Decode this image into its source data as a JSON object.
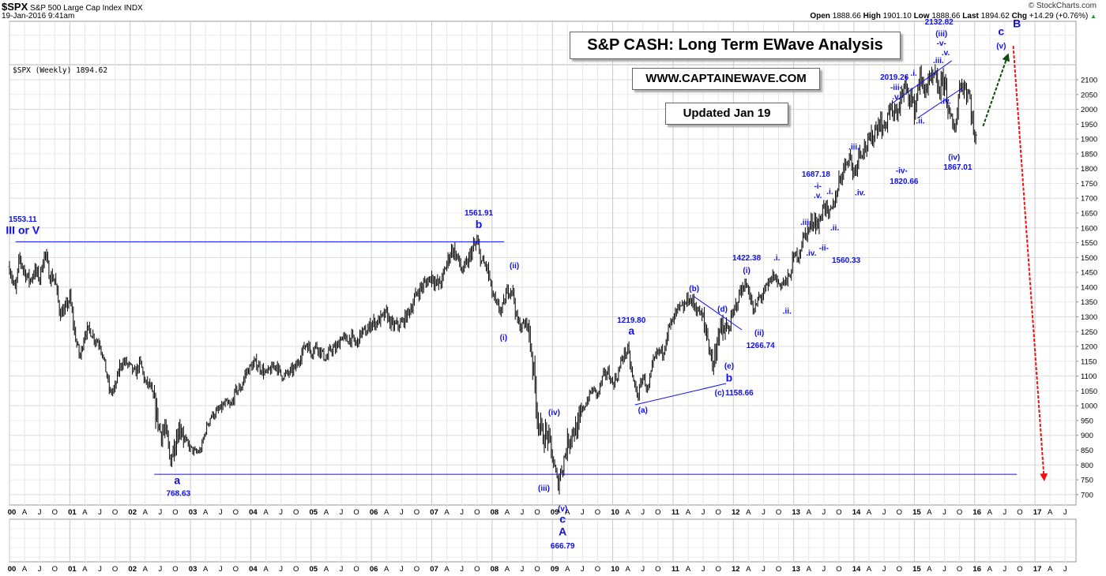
{
  "header": {
    "symbol": "$SPX",
    "name": "S&P 500 Large Cap Index INDX",
    "timestamp": "19-Jan-2016 9:41am",
    "copyright": "© StockCharts.com",
    "open_label": "Open",
    "open": "1888.66",
    "high_label": "High",
    "high": "1901.10",
    "low_label": "Low",
    "low": "1888.66",
    "last_label": "Last",
    "last": "1894.62",
    "chg_label": "Chg",
    "chg": "+14.29 (+0.76%)",
    "chg_icon": "up-triangle-icon"
  },
  "legend": "$SPX (Weekly) 1894.62",
  "boxes": {
    "title": "S&P CASH: Long Term EWave Analysis",
    "website": "WWW.CAPTAINEWAVE.COM",
    "updated": "Updated Jan 19"
  },
  "colors": {
    "annotation": "#1010ee",
    "bars": "#000000",
    "up_arrow": "#0b4d0b",
    "down_arrow": "#ee1111",
    "grid": "#e2e2e2"
  },
  "chart_data": {
    "type": "ohlc",
    "frequency": "weekly",
    "y_scale": "linear",
    "ylim": [
      665,
      2297
    ],
    "xlim": [
      2000.0,
      2017.68
    ],
    "grid": true,
    "y_ticks": [
      700,
      750,
      800,
      850,
      900,
      950,
      1000,
      1050,
      1100,
      1150,
      1200,
      1250,
      1300,
      1350,
      1400,
      1450,
      1500,
      1550,
      1600,
      1650,
      1700,
      1750,
      1800,
      1850,
      1900,
      1950,
      2000,
      2050,
      2100
    ],
    "x_year_labels": [
      "00",
      "01",
      "02",
      "03",
      "04",
      "05",
      "06",
      "07",
      "08",
      "09",
      "10",
      "11",
      "12",
      "13",
      "14",
      "15",
      "16",
      "17"
    ],
    "x_month_labels": [
      "A",
      "J",
      "O"
    ],
    "monthly_close_start": "2000-01",
    "monthly_close": [
      1394,
      1366,
      1499,
      1452,
      1421,
      1455,
      1431,
      1518,
      1437,
      1429,
      1315,
      1320,
      1366,
      1240,
      1160,
      1249,
      1256,
      1224,
      1211,
      1134,
      1041,
      1060,
      1139,
      1148,
      1130,
      1107,
      1147,
      1077,
      1067,
      990,
      912,
      916,
      815,
      886,
      936,
      880,
      856,
      841,
      848,
      917,
      964,
      975,
      990,
      1008,
      996,
      1051,
      1058,
      1112,
      1131,
      1145,
      1126,
      1107,
      1121,
      1141,
      1102,
      1104,
      1115,
      1130,
      1174,
      1212,
      1181,
      1204,
      1181,
      1157,
      1192,
      1191,
      1234,
      1220,
      1229,
      1207,
      1249,
      1248,
      1280,
      1281,
      1295,
      1311,
      1270,
      1270,
      1277,
      1304,
      1336,
      1378,
      1401,
      1418,
      1438,
      1407,
      1421,
      1482,
      1531,
      1503,
      1455,
      1474,
      1527,
      1549,
      1481,
      1468,
      1379,
      1331,
      1323,
      1386,
      1400,
      1280,
      1267,
      1283,
      1166,
      969,
      896,
      903,
      826,
      735,
      798,
      873,
      919,
      919,
      987,
      1021,
      1057,
      1036,
      1096,
      1115,
      1074,
      1104,
      1169,
      1187,
      1089,
      1031,
      1102,
      1049,
      1141,
      1183,
      1181,
      1258,
      1286,
      1327,
      1326,
      1364,
      1345,
      1321,
      1292,
      1219,
      1131,
      1253,
      1247,
      1258,
      1312,
      1366,
      1408,
      1398,
      1310,
      1362,
      1379,
      1407,
      1441,
      1412,
      1416,
      1426,
      1498,
      1515,
      1569,
      1598,
      1631,
      1606,
      1686,
      1633,
      1682,
      1757,
      1806,
      1848,
      1783,
      1859,
      1872,
      1884,
      1924,
      1960,
      1931,
      2003,
      1972,
      2018,
      2068,
      2059,
      1995,
      2105,
      2068,
      2086,
      2107,
      2063,
      2104,
      1972,
      1920,
      2079,
      2080,
      2044,
      1894
    ],
    "lines": [
      {
        "name": "resistance-line",
        "color": "#1010ee",
        "dash": false,
        "from": [
          2000.1,
          1553.11
        ],
        "to": [
          2008.2,
          1553.11
        ]
      },
      {
        "name": "support-line",
        "color": "#1010ee",
        "dash": false,
        "from": [
          2002.4,
          768.63
        ],
        "to": [
          2016.7,
          768.63
        ]
      },
      {
        "name": "triangle-lower-line",
        "color": "#1010ee",
        "dash": false,
        "from": [
          2010.37,
          1003
        ],
        "to": [
          2011.88,
          1075
        ]
      },
      {
        "name": "triangle-upper-line",
        "color": "#1010ee",
        "dash": false,
        "from": [
          2011.35,
          1368
        ],
        "to": [
          2012.14,
          1256
        ]
      },
      {
        "name": "wedge-upper-line",
        "color": "#1010ee",
        "dash": false,
        "from": [
          2014.63,
          2020
        ],
        "to": [
          2015.62,
          2164
        ]
      },
      {
        "name": "wedge-lower-line",
        "color": "#1010ee",
        "dash": false,
        "from": [
          2015.05,
          1970
        ],
        "to": [
          2015.79,
          2071
        ]
      },
      {
        "name": "projection-up-arrow",
        "color": "#0b4d0b",
        "dash": true,
        "arrow": true,
        "from": [
          2016.14,
          1943
        ],
        "to": [
          2016.54,
          2177
        ]
      },
      {
        "name": "projection-down-arrow",
        "color": "#ee1111",
        "dash": true,
        "arrow": true,
        "from": [
          2016.64,
          2214
        ],
        "to": [
          2017.15,
          758
        ]
      }
    ],
    "annotations": [
      {
        "text": "1553.11",
        "x": 2000.22,
        "y": 1621
      },
      {
        "text": "III or V",
        "x": 2000.22,
        "y": 1580,
        "big": true
      },
      {
        "text": "a",
        "x": 2002.78,
        "y": 735,
        "big": true
      },
      {
        "text": "768.63",
        "x": 2002.8,
        "y": 695
      },
      {
        "text": "1561.91",
        "x": 2007.78,
        "y": 1642
      },
      {
        "text": "b",
        "x": 2007.78,
        "y": 1600,
        "big": true
      },
      {
        "text": "(ii)",
        "x": 2008.37,
        "y": 1464
      },
      {
        "text": "(i)",
        "x": 2008.19,
        "y": 1222
      },
      {
        "text": "(iv)",
        "x": 2009.03,
        "y": 969
      },
      {
        "text": "(iii)",
        "x": 2008.86,
        "y": 713
      },
      {
        "text": "(v)",
        "x": 2009.17,
        "y": 644
      },
      {
        "text": "c",
        "x": 2009.17,
        "y": 605,
        "big": true
      },
      {
        "text": "A",
        "x": 2009.17,
        "y": 562,
        "big": true
      },
      {
        "text": "666.79",
        "x": 2009.17,
        "y": 519
      },
      {
        "text": "1219.80",
        "x": 2010.31,
        "y": 1280
      },
      {
        "text": "a",
        "x": 2010.31,
        "y": 1240,
        "big": true
      },
      {
        "text": "(b)",
        "x": 2011.35,
        "y": 1387
      },
      {
        "text": "(d)",
        "x": 2011.82,
        "y": 1317
      },
      {
        "text": "(e)",
        "x": 2011.93,
        "y": 1126
      },
      {
        "text": "b",
        "x": 2011.93,
        "y": 1081,
        "big": true
      },
      {
        "text": "(c)",
        "x": 2011.77,
        "y": 1035
      },
      {
        "text": "1158.66",
        "x": 2012.1,
        "y": 1035
      },
      {
        "text": "(a)",
        "x": 2010.5,
        "y": 977
      },
      {
        "text": "1422.38",
        "x": 2012.22,
        "y": 1490
      },
      {
        "text": "(i)",
        "x": 2012.22,
        "y": 1448
      },
      {
        "text": "(ii)",
        "x": 2012.43,
        "y": 1238
      },
      {
        "text": "1266.74",
        "x": 2012.45,
        "y": 1195
      },
      {
        "text": ".i.",
        "x": 2012.72,
        "y": 1490
      },
      {
        "text": ".ii.",
        "x": 2012.89,
        "y": 1310
      },
      {
        "text": ".iii.",
        "x": 2013.2,
        "y": 1610
      },
      {
        "text": ".iv.",
        "x": 2013.29,
        "y": 1506
      },
      {
        "text": "1687.18",
        "x": 2013.37,
        "y": 1773
      },
      {
        "text": "-i-",
        "x": 2013.4,
        "y": 1733
      },
      {
        "text": ".v.",
        "x": 2013.4,
        "y": 1701
      },
      {
        "text": ".i.",
        "x": 2013.6,
        "y": 1714
      },
      {
        "text": ".ii.",
        "x": 2013.68,
        "y": 1591
      },
      {
        "text": "-ii-",
        "x": 2013.5,
        "y": 1524
      },
      {
        "text": "1560.33",
        "x": 2013.87,
        "y": 1482
      },
      {
        "text": ".iii.",
        "x": 2014.0,
        "y": 1865
      },
      {
        "text": ".iv.",
        "x": 2014.1,
        "y": 1710
      },
      {
        "text": "-iv-",
        "x": 2014.79,
        "y": 1785
      },
      {
        "text": "1820.66",
        "x": 2014.83,
        "y": 1748
      },
      {
        "text": "(iv)",
        "x": 2015.66,
        "y": 1830
      },
      {
        "text": "1867.01",
        "x": 2015.72,
        "y": 1796
      },
      {
        "text": "2019.26",
        "x": 2014.67,
        "y": 2100
      },
      {
        "text": "-iii-",
        "x": 2014.7,
        "y": 2065
      },
      {
        "text": ".v.",
        "x": 2014.7,
        "y": 2033
      },
      {
        "text": ".i.",
        "x": 2014.99,
        "y": 2113
      },
      {
        "text": ".iii.",
        "x": 2015.4,
        "y": 2156
      },
      {
        "text": ".ii.",
        "x": 2015.1,
        "y": 1952
      },
      {
        "text": ".iv.",
        "x": 2015.52,
        "y": 2019
      },
      {
        "text": "2132.82",
        "x": 2015.41,
        "y": 2287
      },
      {
        "text": "(iii)",
        "x": 2015.45,
        "y": 2247
      },
      {
        "text": "-v-",
        "x": 2015.45,
        "y": 2215
      },
      {
        "text": ".v.",
        "x": 2015.52,
        "y": 2183
      },
      {
        "text": "c",
        "x": 2016.44,
        "y": 2250,
        "big": true
      },
      {
        "text": "(v)",
        "x": 2016.44,
        "y": 2205
      },
      {
        "text": "B",
        "x": 2016.7,
        "y": 2277,
        "big": true
      }
    ]
  }
}
